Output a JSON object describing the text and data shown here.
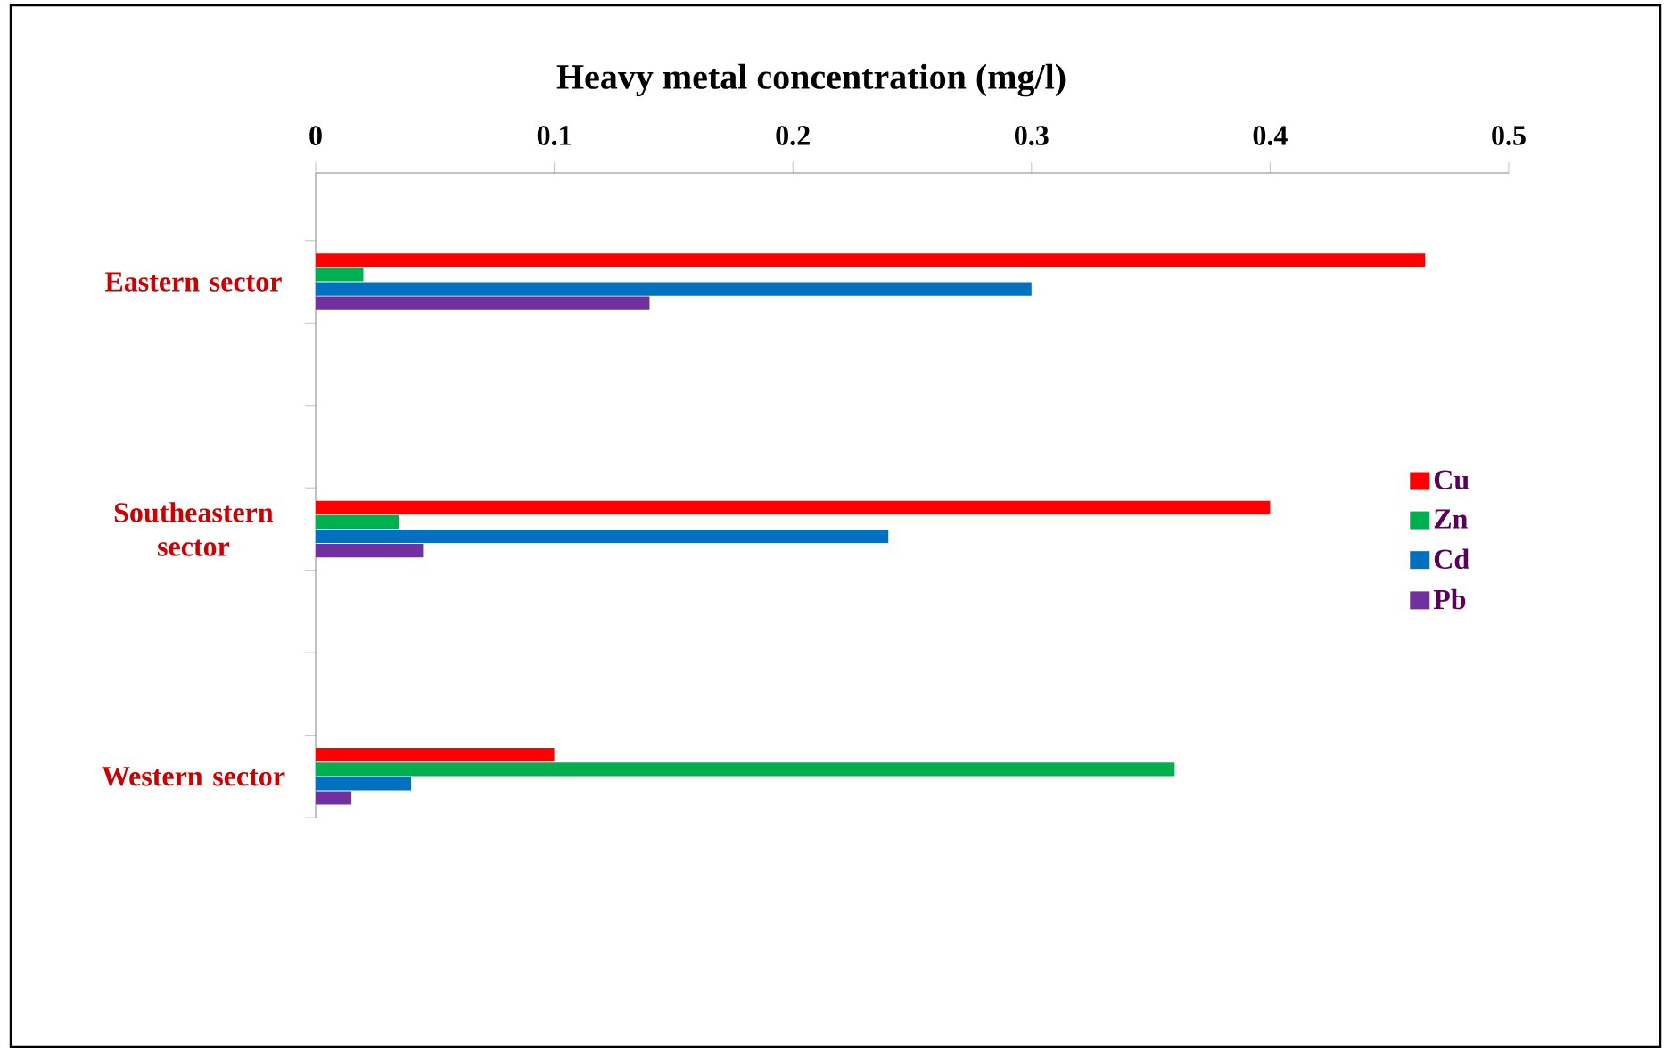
{
  "chart_data": {
    "type": "bar",
    "orientation": "horizontal",
    "title": "Heavy metal concentration (mg/l)",
    "categories": [
      "Eastern sector",
      "Southeastern sector",
      "Western sector"
    ],
    "series": [
      {
        "name": "Cu",
        "color": "#ff0000",
        "values": [
          0.465,
          0.4,
          0.1
        ]
      },
      {
        "name": "Zn",
        "color": "#00b050",
        "values": [
          0.02,
          0.035,
          0.36
        ]
      },
      {
        "name": "Cd",
        "color": "#0070c0",
        "values": [
          0.3,
          0.24,
          0.04
        ]
      },
      {
        "name": "Pb",
        "color": "#7030a0",
        "values": [
          0.14,
          0.045,
          0.015
        ]
      }
    ],
    "xlim": [
      0,
      0.5
    ],
    "xticks": [
      0,
      0.1,
      0.2,
      0.3,
      0.4,
      0.5
    ],
    "legend": "right"
  }
}
